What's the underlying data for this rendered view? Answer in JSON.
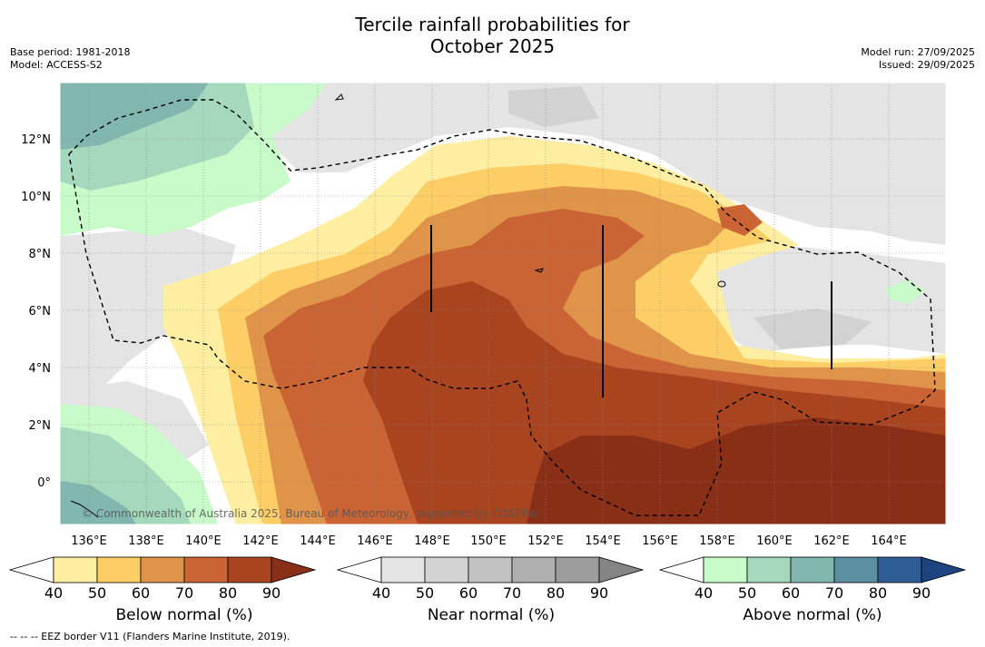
{
  "title_line1": "Tercile rainfall probabilities for",
  "title_line2": "October 2025",
  "base_period": "Base period: 1981-2018",
  "model": "Model: ACCESS-S2",
  "model_run": "Model run: 27/09/2025",
  "issued": "Issued: 29/09/2025",
  "copyright": "© Commonwealth of Australia 2025, Bureau of Meteorology, supported by COSPPac",
  "lat_labels": [
    "12°N",
    "10°N",
    "8°N",
    "6°N",
    "4°N",
    "2°N",
    "0°"
  ],
  "lon_labels": [
    "136°E",
    "138°E",
    "140°E",
    "142°E",
    "144°E",
    "146°E",
    "148°E",
    "150°E",
    "152°E",
    "154°E",
    "156°E",
    "158°E",
    "160°E",
    "162°E",
    "164°E"
  ],
  "colorbars": [
    {
      "label": "Below normal (%)",
      "ticks": [
        "40",
        "50",
        "60",
        "70",
        "80",
        "90"
      ],
      "colors": [
        "#ffffff",
        "#fdeea2",
        "#fdcd66",
        "#e0944a",
        "#cb6434",
        "#a8441f",
        "#8a2f17"
      ]
    },
    {
      "label": "Near normal (%)",
      "ticks": [
        "40",
        "50",
        "60",
        "70",
        "80",
        "90"
      ],
      "colors": [
        "#ffffff",
        "#e4e4e4",
        "#d2d2d2",
        "#c2c2c2",
        "#afafaf",
        "#9c9c9c",
        "#848484"
      ]
    },
    {
      "label": "Above normal (%)",
      "ticks": [
        "40",
        "50",
        "60",
        "70",
        "80",
        "90"
      ],
      "colors": [
        "#ffffff",
        "#c8fbc9",
        "#a5d8bd",
        "#82b7b0",
        "#5b8ea0",
        "#2e5c93",
        "#1d4480"
      ]
    }
  ],
  "footnote": "--  --  -- EEZ border V11 (Flanders Marine Institute, 2019)."
}
